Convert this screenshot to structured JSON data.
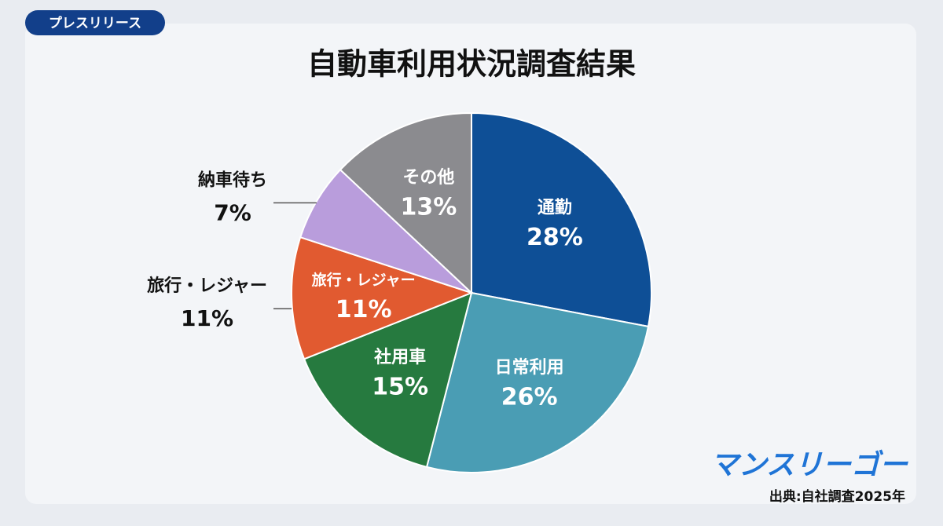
{
  "badge": "プレスリリース",
  "chart_data": {
    "type": "pie",
    "title": "自動車利用状況調査結果",
    "categories": [
      "通勤",
      "日常利用",
      "社用車",
      "旅行・レジャー",
      "納車待ち",
      "その他"
    ],
    "values": [
      28,
      26,
      15,
      11,
      7,
      13
    ],
    "value_labels": [
      "28%",
      "26%",
      "15%",
      "11%",
      "7%",
      "13%"
    ],
    "colors": [
      "#0e4f96",
      "#4a9db4",
      "#267a3f",
      "#e15a30",
      "#b99ddc",
      "#8b8b8f"
    ]
  },
  "logo": "マンスリーゴー",
  "source": "出典:自社調査2025年"
}
